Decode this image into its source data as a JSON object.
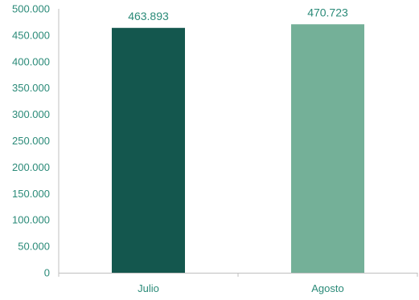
{
  "chart_data": {
    "type": "bar",
    "categories": [
      "Julio",
      "Agosto"
    ],
    "values": [
      463893,
      470723
    ],
    "value_labels": [
      "463.893",
      "470.723"
    ],
    "y_ticks": [
      0,
      50000,
      100000,
      150000,
      200000,
      250000,
      300000,
      350000,
      400000,
      450000,
      500000
    ],
    "y_tick_labels": [
      "0",
      "50.000",
      "100.000",
      "150.000",
      "200.000",
      "250.000",
      "300.000",
      "350.000",
      "400.000",
      "450.000",
      "500.000"
    ],
    "ylim": [
      0,
      500000
    ],
    "grid": false,
    "legend": "none",
    "colors": {
      "bars": [
        "#14574E",
        "#74B098"
      ],
      "text": "#2A8A78",
      "axis": "#BFBFBF"
    }
  }
}
